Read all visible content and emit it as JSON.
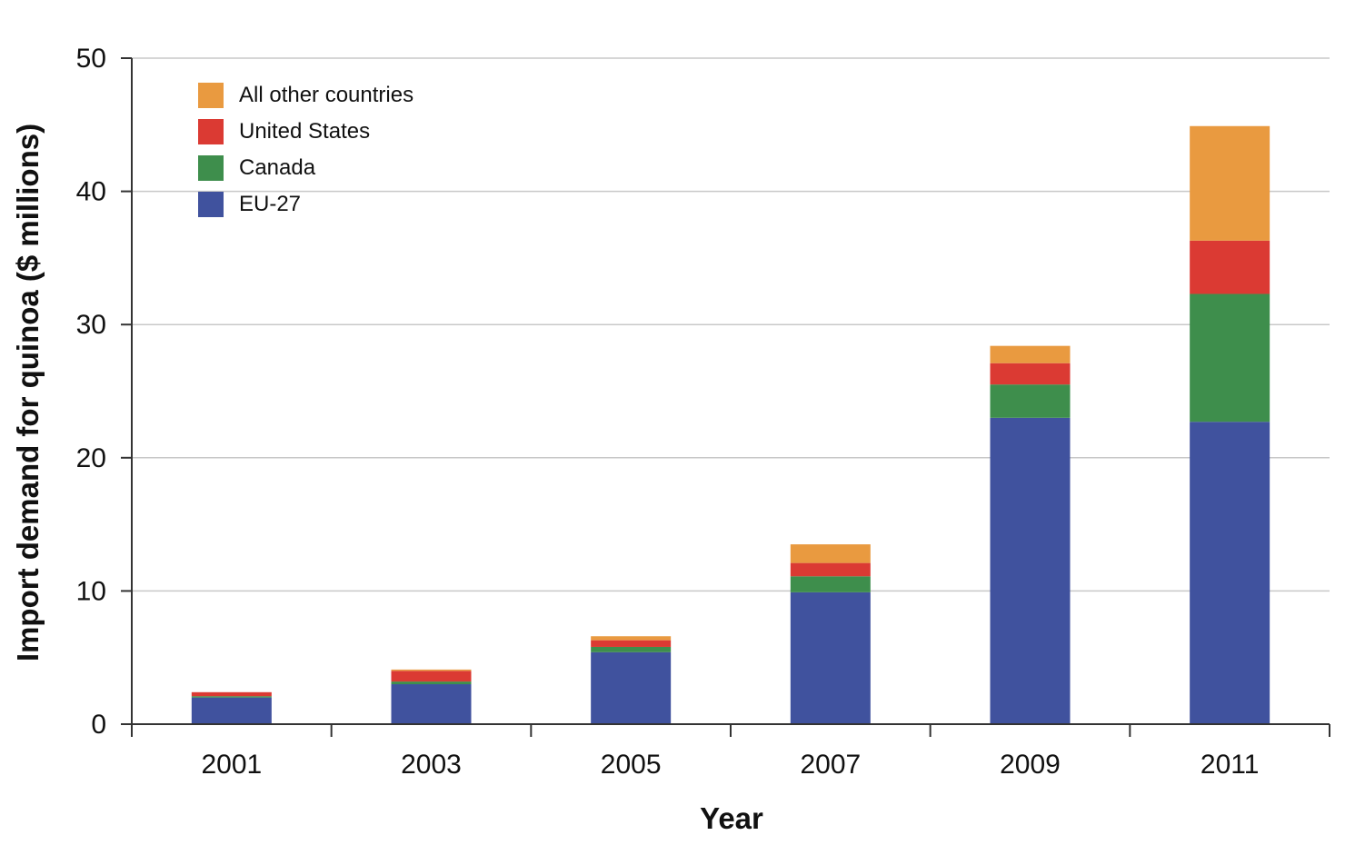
{
  "chart_data": {
    "type": "bar",
    "stacked": true,
    "title": "",
    "xlabel": "Year",
    "ylabel": "Import demand for quinoa ($ millions)",
    "categories": [
      "2001",
      "2003",
      "2005",
      "2007",
      "2009",
      "2011"
    ],
    "ylim": [
      0,
      50
    ],
    "yticks": [
      0,
      10,
      20,
      30,
      40,
      50
    ],
    "grid": true,
    "legend_position": "top-left",
    "series": [
      {
        "name": "EU-27",
        "color": "#40529e",
        "values": [
          2.0,
          3.0,
          5.4,
          9.9,
          23.0,
          22.7
        ]
      },
      {
        "name": "Canada",
        "color": "#3e8e4c",
        "values": [
          0.1,
          0.2,
          0.4,
          1.2,
          2.5,
          9.6
        ]
      },
      {
        "name": "United States",
        "color": "#db3a33",
        "values": [
          0.3,
          0.8,
          0.5,
          1.0,
          1.6,
          4.0
        ]
      },
      {
        "name": "All other countries",
        "color": "#e99a40",
        "values": [
          0.0,
          0.1,
          0.3,
          1.4,
          1.3,
          8.6
        ]
      }
    ],
    "legend_order": [
      "All other countries",
      "United States",
      "Canada",
      "EU-27"
    ]
  }
}
